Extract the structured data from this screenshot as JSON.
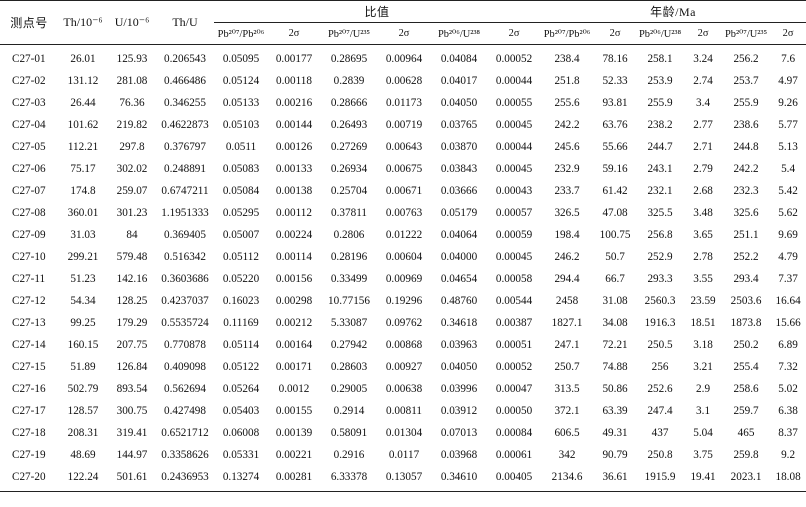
{
  "header": {
    "spot": "测点号",
    "th": "Th/10⁻⁶",
    "u": "U/10⁻⁶",
    "thu": "Th/U",
    "ratio_group": "比值",
    "age_group": "年龄/Ma",
    "pb207_pb206": "Pb²⁰⁷/Pb²⁰⁶",
    "pb207_u235": "Pb²⁰⁷/U²³⁵",
    "pb206_u238": "Pb²⁰⁶/U²³⁸",
    "sigma": "2σ"
  },
  "rows": [
    [
      "C27-01",
      "26.01",
      "125.93",
      "0.206543",
      "0.05095",
      "0.00177",
      "0.28695",
      "0.00964",
      "0.04084",
      "0.00052",
      "238.4",
      "78.16",
      "258.1",
      "3.24",
      "256.2",
      "7.6"
    ],
    [
      "C27-02",
      "131.12",
      "281.08",
      "0.466486",
      "0.05124",
      "0.00118",
      "0.2839",
      "0.00628",
      "0.04017",
      "0.00044",
      "251.8",
      "52.33",
      "253.9",
      "2.74",
      "253.7",
      "4.97"
    ],
    [
      "C27-03",
      "26.44",
      "76.36",
      "0.346255",
      "0.05133",
      "0.00216",
      "0.28666",
      "0.01173",
      "0.04050",
      "0.00055",
      "255.6",
      "93.81",
      "255.9",
      "3.4",
      "255.9",
      "9.26"
    ],
    [
      "C27-04",
      "101.62",
      "219.82",
      "0.4622873",
      "0.05103",
      "0.00144",
      "0.26493",
      "0.00719",
      "0.03765",
      "0.00045",
      "242.2",
      "63.76",
      "238.2",
      "2.77",
      "238.6",
      "5.77"
    ],
    [
      "C27-05",
      "112.21",
      "297.8",
      "0.376797",
      "0.0511",
      "0.00126",
      "0.27269",
      "0.00643",
      "0.03870",
      "0.00044",
      "245.6",
      "55.66",
      "244.7",
      "2.71",
      "244.8",
      "5.13"
    ],
    [
      "C27-06",
      "75.17",
      "302.02",
      "0.248891",
      "0.05083",
      "0.00133",
      "0.26934",
      "0.00675",
      "0.03843",
      "0.00045",
      "232.9",
      "59.16",
      "243.1",
      "2.79",
      "242.2",
      "5.4"
    ],
    [
      "C27-07",
      "174.8",
      "259.07",
      "0.6747211",
      "0.05084",
      "0.00138",
      "0.25704",
      "0.00671",
      "0.03666",
      "0.00043",
      "233.7",
      "61.42",
      "232.1",
      "2.68",
      "232.3",
      "5.42"
    ],
    [
      "C27-08",
      "360.01",
      "301.23",
      "1.1951333",
      "0.05295",
      "0.00112",
      "0.37811",
      "0.00763",
      "0.05179",
      "0.00057",
      "326.5",
      "47.08",
      "325.5",
      "3.48",
      "325.6",
      "5.62"
    ],
    [
      "C27-09",
      "31.03",
      "84",
      "0.369405",
      "0.05007",
      "0.00224",
      "0.2806",
      "0.01222",
      "0.04064",
      "0.00059",
      "198.4",
      "100.75",
      "256.8",
      "3.65",
      "251.1",
      "9.69"
    ],
    [
      "C27-10",
      "299.21",
      "579.48",
      "0.516342",
      "0.05112",
      "0.00114",
      "0.28196",
      "0.00604",
      "0.04000",
      "0.00045",
      "246.2",
      "50.7",
      "252.9",
      "2.78",
      "252.2",
      "4.79"
    ],
    [
      "C27-11",
      "51.23",
      "142.16",
      "0.3603686",
      "0.05220",
      "0.00156",
      "0.33499",
      "0.00969",
      "0.04654",
      "0.00058",
      "294.4",
      "66.7",
      "293.3",
      "3.55",
      "293.4",
      "7.37"
    ],
    [
      "C27-12",
      "54.34",
      "128.25",
      "0.4237037",
      "0.16023",
      "0.00298",
      "10.77156",
      "0.19296",
      "0.48760",
      "0.00544",
      "2458",
      "31.08",
      "2560.3",
      "23.59",
      "2503.6",
      "16.64"
    ],
    [
      "C27-13",
      "99.25",
      "179.29",
      "0.5535724",
      "0.11169",
      "0.00212",
      "5.33087",
      "0.09762",
      "0.34618",
      "0.00387",
      "1827.1",
      "34.08",
      "1916.3",
      "18.51",
      "1873.8",
      "15.66"
    ],
    [
      "C27-14",
      "160.15",
      "207.75",
      "0.770878",
      "0.05114",
      "0.00164",
      "0.27942",
      "0.00868",
      "0.03963",
      "0.00051",
      "247.1",
      "72.21",
      "250.5",
      "3.18",
      "250.2",
      "6.89"
    ],
    [
      "C27-15",
      "51.89",
      "126.84",
      "0.409098",
      "0.05122",
      "0.00171",
      "0.28603",
      "0.00927",
      "0.04050",
      "0.00052",
      "250.7",
      "74.88",
      "256",
      "3.21",
      "255.4",
      "7.32"
    ],
    [
      "C27-16",
      "502.79",
      "893.54",
      "0.562694",
      "0.05264",
      "0.0012",
      "0.29005",
      "0.00638",
      "0.03996",
      "0.00047",
      "313.5",
      "50.86",
      "252.6",
      "2.9",
      "258.6",
      "5.02"
    ],
    [
      "C27-17",
      "128.57",
      "300.75",
      "0.427498",
      "0.05403",
      "0.00155",
      "0.2914",
      "0.00811",
      "0.03912",
      "0.00050",
      "372.1",
      "63.39",
      "247.4",
      "3.1",
      "259.7",
      "6.38"
    ],
    [
      "C27-18",
      "208.31",
      "319.41",
      "0.6521712",
      "0.06008",
      "0.00139",
      "0.58091",
      "0.01304",
      "0.07013",
      "0.00084",
      "606.5",
      "49.31",
      "437",
      "5.04",
      "465",
      "8.37"
    ],
    [
      "C27-19",
      "48.69",
      "144.97",
      "0.3358626",
      "0.05331",
      "0.00221",
      "0.2916",
      "0.0117",
      "0.03968",
      "0.00061",
      "342",
      "90.79",
      "250.8",
      "3.75",
      "259.8",
      "9.2"
    ],
    [
      "C27-20",
      "122.24",
      "501.61",
      "0.2436953",
      "0.13274",
      "0.00281",
      "6.33378",
      "0.13057",
      "0.34610",
      "0.00405",
      "2134.6",
      "36.61",
      "1915.9",
      "19.41",
      "2023.1",
      "18.08"
    ]
  ]
}
